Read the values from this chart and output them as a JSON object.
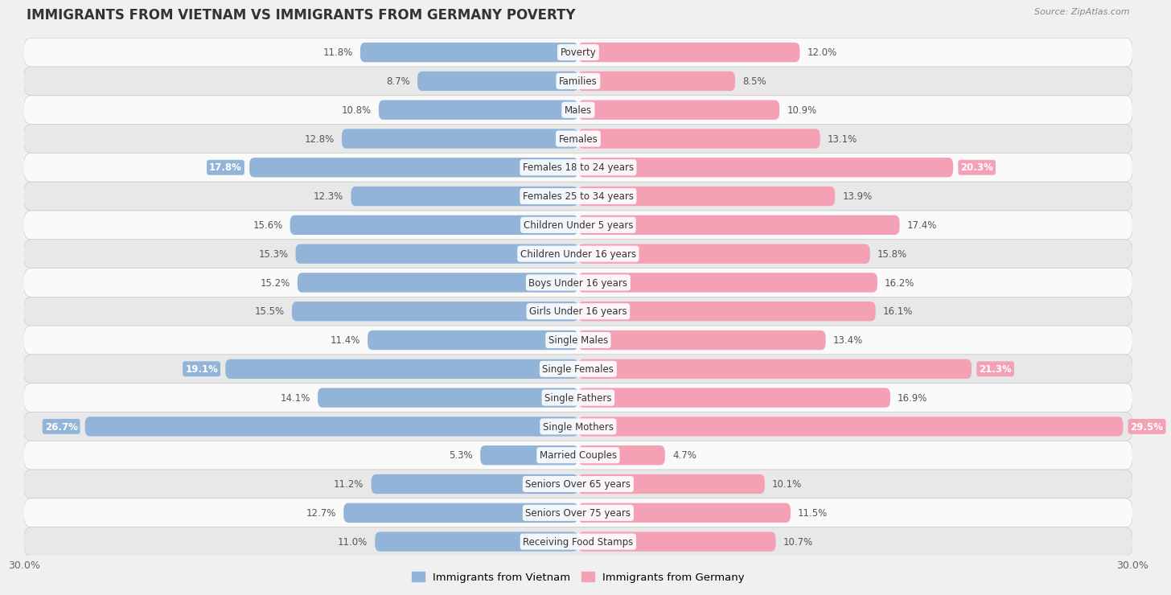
{
  "title": "IMMIGRANTS FROM VIETNAM VS IMMIGRANTS FROM GERMANY POVERTY",
  "source": "Source: ZipAtlas.com",
  "categories": [
    "Poverty",
    "Families",
    "Males",
    "Females",
    "Females 18 to 24 years",
    "Females 25 to 34 years",
    "Children Under 5 years",
    "Children Under 16 years",
    "Boys Under 16 years",
    "Girls Under 16 years",
    "Single Males",
    "Single Females",
    "Single Fathers",
    "Single Mothers",
    "Married Couples",
    "Seniors Over 65 years",
    "Seniors Over 75 years",
    "Receiving Food Stamps"
  ],
  "vietnam_values": [
    11.8,
    8.7,
    10.8,
    12.8,
    17.8,
    12.3,
    15.6,
    15.3,
    15.2,
    15.5,
    11.4,
    19.1,
    14.1,
    26.7,
    5.3,
    11.2,
    12.7,
    11.0
  ],
  "germany_values": [
    12.0,
    8.5,
    10.9,
    13.1,
    20.3,
    13.9,
    17.4,
    15.8,
    16.2,
    16.1,
    13.4,
    21.3,
    16.9,
    29.5,
    4.7,
    10.1,
    11.5,
    10.7
  ],
  "vietnam_color": "#91b4d8",
  "germany_color": "#f4a0b5",
  "vietnam_highlight_color": "#91b4d8",
  "germany_highlight_color": "#f4a0b5",
  "highlight_rows": [
    4,
    11,
    13
  ],
  "max_value": 30.0,
  "background_color": "#f0f0f0",
  "row_bg_colors": [
    "#fafafa",
    "#e8e8e8"
  ],
  "legend_vietnam": "Immigrants from Vietnam",
  "legend_germany": "Immigrants from Germany",
  "bar_height": 0.68,
  "title_fontsize": 12,
  "label_fontsize": 8.5,
  "value_fontsize": 8.5,
  "axis_label_fontsize": 9
}
